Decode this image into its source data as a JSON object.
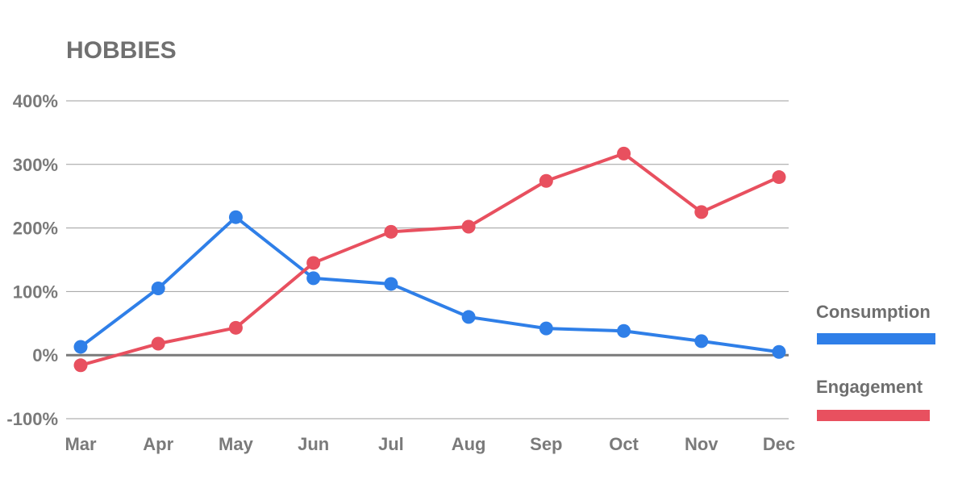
{
  "chart_data": {
    "type": "line",
    "title": "HOBBIES",
    "xlabel": "",
    "ylabel": "",
    "categories": [
      "Mar",
      "Apr",
      "May",
      "Jun",
      "Jul",
      "Aug",
      "Sep",
      "Oct",
      "Nov",
      "Dec"
    ],
    "ylim": [
      -100,
      400
    ],
    "yticks": [
      "400%",
      "300%",
      "200%",
      "100%",
      "0%",
      "-100%"
    ],
    "ytick_values": [
      400,
      300,
      200,
      100,
      0,
      -100
    ],
    "grid": true,
    "legend_position": "right",
    "series": [
      {
        "name": "Consumption",
        "color": "#2f7fe8",
        "values": [
          13,
          105,
          217,
          121,
          112,
          60,
          42,
          38,
          22,
          5
        ]
      },
      {
        "name": "Engagement",
        "color": "#e8505f",
        "values": [
          -16,
          18,
          43,
          145,
          194,
          202,
          274,
          317,
          225,
          280
        ]
      }
    ]
  }
}
